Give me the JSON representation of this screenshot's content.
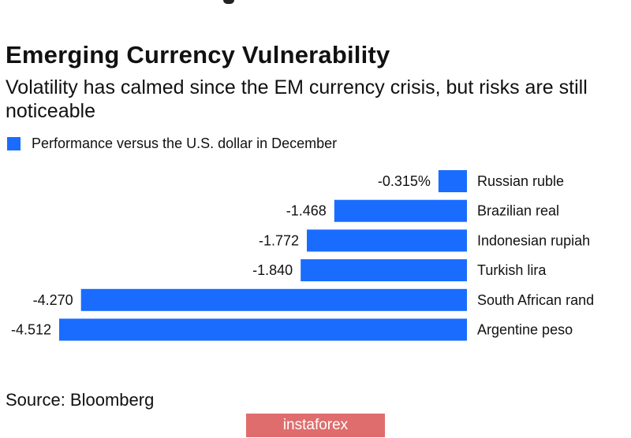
{
  "title": "Emerging Currency Vulnerability",
  "subtitle": "Volatility has calmed since the EM currency crisis, but risks are still noticeable",
  "legend": {
    "label": "Performance versus the U.S. dollar in December"
  },
  "source": "Source: Bloomberg",
  "watermark": "instaforex",
  "colors": {
    "bar": "#1a6cff",
    "text": "#111111",
    "watermark_bg": "#e06d6d"
  },
  "chart_data": {
    "type": "bar",
    "orientation": "horizontal",
    "categories": [
      "Russian ruble",
      "Brazilian real",
      "Indonesian rupiah",
      "Turkish lira",
      "South African rand",
      "Argentine peso"
    ],
    "series": [
      {
        "name": "Performance versus the U.S. dollar in December",
        "values": [
          -0.315,
          -1.468,
          -1.772,
          -1.84,
          -4.27,
          -4.512
        ],
        "value_labels": [
          "-0.315%",
          "-1.468",
          "-1.772",
          "-1.840",
          "-4.270",
          "-4.512"
        ]
      }
    ],
    "xlim": [
      -4.512,
      0
    ],
    "unit": "%",
    "legend_position": "top-left"
  }
}
